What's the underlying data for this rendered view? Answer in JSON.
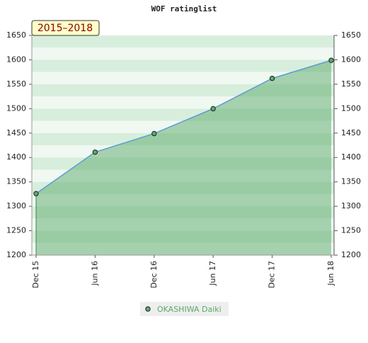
{
  "chart_data": {
    "type": "line",
    "title": "WOF ratinglist",
    "annotation": "2015–2018",
    "categories": [
      "Dec 15",
      "Jun 16",
      "Dec 16",
      "Jun 17",
      "Dec 17",
      "Jun 18"
    ],
    "series": [
      {
        "name": "OKASHIWA Daiki",
        "color": "#5aaa6a",
        "values": [
          1326,
          1411,
          1449,
          1500,
          1562,
          1599
        ]
      }
    ],
    "ylim": [
      1200,
      1650
    ],
    "yticks": [
      1200,
      1250,
      1300,
      1350,
      1400,
      1450,
      1500,
      1550,
      1600,
      1650
    ],
    "line_color": "#5b9bd5",
    "right_axis": true
  }
}
